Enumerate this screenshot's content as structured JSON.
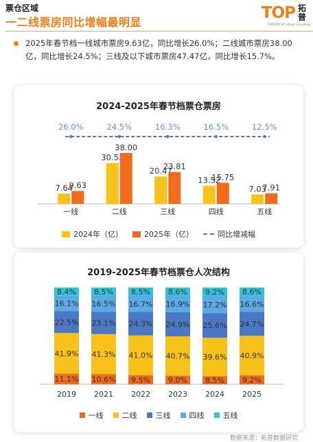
{
  "header": {
    "section_label": "票仓区域",
    "title": "一二线票房同比增幅最明显",
    "logo_text": "TOP",
    "logo_cn": "拓普",
    "logo_tagline": "CENTURY of Culture Consulting"
  },
  "summary": "2025年春节档一线城市票房9.63亿，同比增长26.0%；二线城市票房38.00亿，同比增长24.5%；三线及以下城市票房47.47亿，同比增长15.7%。",
  "source": "数据来源：拓普数据研究",
  "colors": {
    "accent": "#f07d1a",
    "bar_2024": "#f9c21b",
    "bar_2025": "#f26b1d",
    "growth_line": "#4a78c5",
    "tier1": "#f26b1d",
    "tier2": "#f9c21b",
    "tier3": "#4a78c5",
    "tier4": "#5ba8e6",
    "tier5": "#2fc5d8"
  },
  "chart_data": [
    {
      "type": "bar",
      "title": "2024-2025年春节档票仓票房",
      "categories": [
        "一线",
        "二线",
        "三线",
        "四线",
        "五线"
      ],
      "series": [
        {
          "name": "2024年（亿）",
          "values": [
            7.64,
            30.53,
            20.47,
            13.52,
            7.03
          ]
        },
        {
          "name": "2025年（亿）",
          "values": [
            9.63,
            38.0,
            23.81,
            15.75,
            7.91
          ]
        }
      ],
      "growth": {
        "name": "同比增减幅",
        "labels": [
          "26.0%",
          "24.5%",
          "16.3%",
          "16.5%",
          "12.5%"
        ]
      },
      "ylim": [
        0,
        40
      ],
      "grid": false,
      "legend": "bottom"
    },
    {
      "type": "bar",
      "stacked": true,
      "title": "2019-2025年春节档票仓人次结构",
      "categories": [
        "2019",
        "2021",
        "2022",
        "2023",
        "2024",
        "2025"
      ],
      "series": [
        {
          "name": "一线",
          "values": [
            11.1,
            10.6,
            9.5,
            9.0,
            8.5,
            9.2
          ]
        },
        {
          "name": "二线",
          "values": [
            41.9,
            41.3,
            41.0,
            40.7,
            39.6,
            40.9
          ]
        },
        {
          "name": "三线",
          "values": [
            22.5,
            23.1,
            24.3,
            24.9,
            25.6,
            24.7
          ]
        },
        {
          "name": "四线",
          "values": [
            16.1,
            16.5,
            16.7,
            16.9,
            17.2,
            16.6
          ]
        },
        {
          "name": "五线",
          "values": [
            8.4,
            8.5,
            8.5,
            8.6,
            9.2,
            8.6
          ]
        }
      ],
      "unit": "%",
      "ylim": [
        0,
        100
      ],
      "grid": false,
      "legend": "bottom"
    }
  ]
}
